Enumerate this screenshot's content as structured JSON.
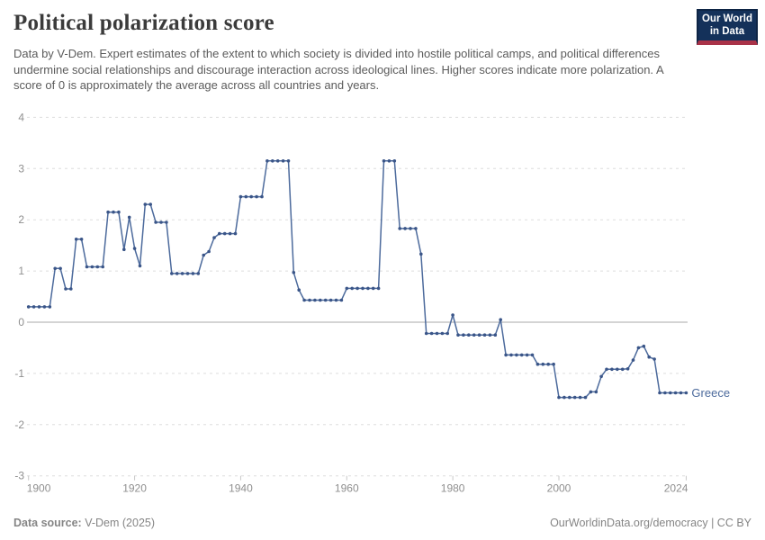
{
  "header": {
    "title": "Political polarization score",
    "subtitle": "Data by V-Dem. Expert estimates of the extent to which society is divided into hostile political camps, and political differences undermine social relationships and discourage interaction across ideological lines. Higher scores indicate more polarization. A score of 0 is approximately the average across all countries and years.",
    "logo": {
      "line1": "Our World",
      "line2": "in Data"
    }
  },
  "footer": {
    "source_label": "Data source:",
    "source_value": "V-Dem (2025)",
    "link_text": "OurWorldinData.org/democracy | CC BY"
  },
  "colors": {
    "series_line": "#4C6A9C",
    "series_marker": "#3A5588",
    "grid": "#DDDDDD",
    "zero_line": "#A8A8A8",
    "axis_text": "#8F8F8F",
    "tick_mark": "#C8C8C8",
    "logo_bg": "#14315A",
    "logo_accent": "#A93248",
    "title_text": "#3B3B3B",
    "subtitle_text": "#5B5B5B",
    "footer_text": "#858585"
  },
  "chart_data": {
    "type": "line",
    "title": "Political polarization score",
    "entity": "Greece",
    "end_label": "Greece",
    "xlabel": "",
    "ylabel": "",
    "xlim": [
      1900,
      2024
    ],
    "ylim": [
      -3,
      4
    ],
    "x_ticks": [
      1900,
      1920,
      1940,
      1960,
      1980,
      2000,
      2024
    ],
    "y_ticks": [
      4,
      3,
      2,
      1,
      0,
      -1,
      -2,
      -3
    ],
    "grid": "horizontal-dashed",
    "zero_line": true,
    "legend_position": "end-of-line",
    "series": [
      {
        "name": "Greece",
        "color": "#4C6A9C",
        "marker_color": "#3A5588",
        "x_start": 1900,
        "x_step": 1,
        "values": [
          0.3,
          0.3,
          0.3,
          0.3,
          0.3,
          1.05,
          1.05,
          0.65,
          0.65,
          1.62,
          1.62,
          1.08,
          1.08,
          1.08,
          1.08,
          2.15,
          2.15,
          2.15,
          1.42,
          2.05,
          1.44,
          1.1,
          2.3,
          2.3,
          1.95,
          1.95,
          1.95,
          0.95,
          0.95,
          0.95,
          0.95,
          0.95,
          0.95,
          1.31,
          1.38,
          1.65,
          1.73,
          1.73,
          1.73,
          1.73,
          2.45,
          2.45,
          2.45,
          2.45,
          2.45,
          3.15,
          3.15,
          3.15,
          3.15,
          3.15,
          0.97,
          0.63,
          0.43,
          0.43,
          0.43,
          0.43,
          0.43,
          0.43,
          0.43,
          0.43,
          0.66,
          0.66,
          0.66,
          0.66,
          0.66,
          0.66,
          0.66,
          3.15,
          3.15,
          3.15,
          1.83,
          1.83,
          1.83,
          1.83,
          1.33,
          -0.22,
          -0.22,
          -0.22,
          -0.22,
          -0.22,
          0.14,
          -0.25,
          -0.25,
          -0.25,
          -0.25,
          -0.25,
          -0.25,
          -0.25,
          -0.25,
          0.05,
          -0.64,
          -0.64,
          -0.64,
          -0.64,
          -0.64,
          -0.64,
          -0.82,
          -0.82,
          -0.82,
          -0.82,
          -1.47,
          -1.47,
          -1.47,
          -1.47,
          -1.47,
          -1.47,
          -1.36,
          -1.36,
          -1.06,
          -0.92,
          -0.92,
          -0.92,
          -0.92,
          -0.91,
          -0.74,
          -0.5,
          -0.47,
          -0.68,
          -0.72,
          -1.38,
          -1.38,
          -1.38,
          -1.38,
          -1.38,
          -1.38
        ]
      }
    ]
  }
}
